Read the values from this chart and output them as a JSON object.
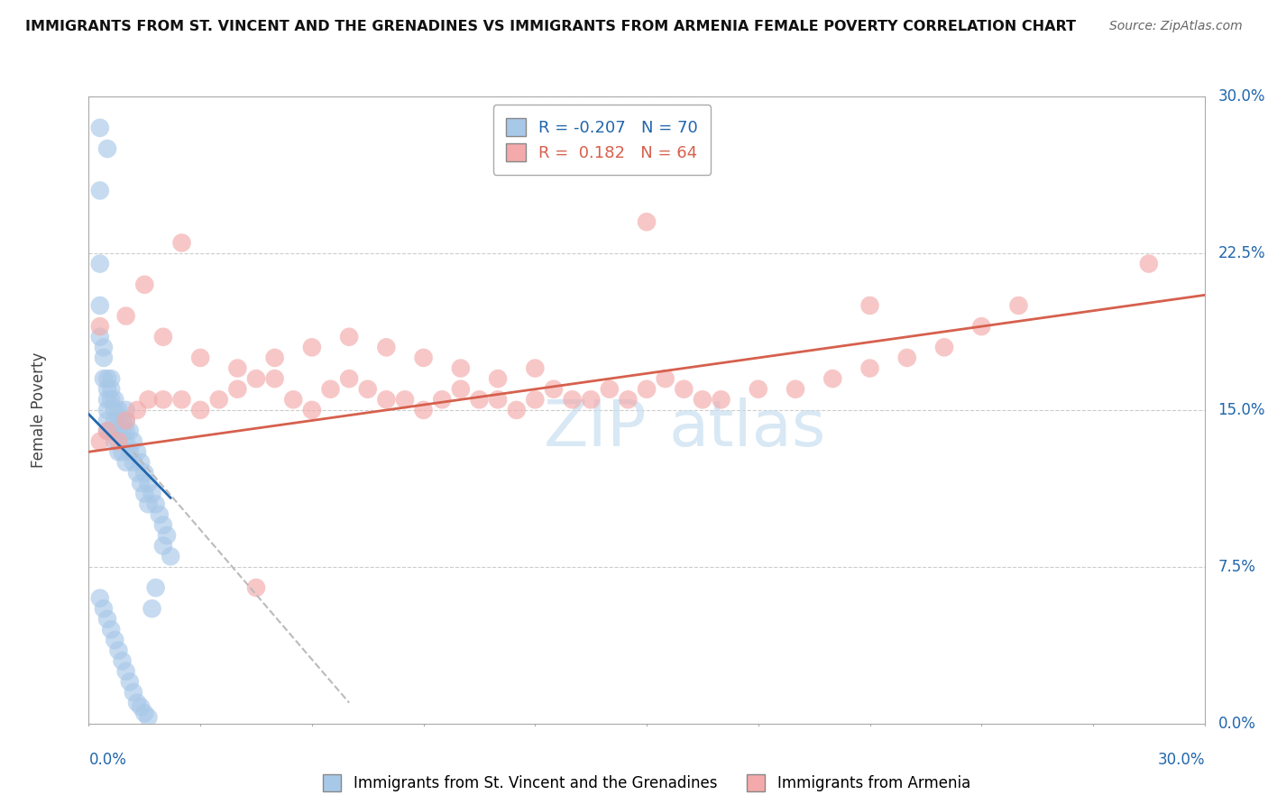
{
  "title": "IMMIGRANTS FROM ST. VINCENT AND THE GRENADINES VS IMMIGRANTS FROM ARMENIA FEMALE POVERTY CORRELATION CHART",
  "source": "Source: ZipAtlas.com",
  "ylabel": "Female Poverty",
  "xrange": [
    0.0,
    0.3
  ],
  "yrange": [
    0.0,
    0.3
  ],
  "blue_R": "-0.207",
  "blue_N": "70",
  "pink_R": "0.182",
  "pink_N": "64",
  "blue_color": "#a8c8e8",
  "pink_color": "#f4aaaa",
  "blue_line_color": "#2166ac",
  "pink_line_color": "#d6604d",
  "dashed_line_color": "#bbbbbb",
  "background_color": "#ffffff",
  "watermark": "ZIPatlas",
  "legend_label_blue": "Immigrants from St. Vincent and the Grenadines",
  "legend_label_pink": "Immigrants from Armenia",
  "blue_scatter_x": [
    0.003,
    0.003,
    0.003,
    0.003,
    0.003,
    0.004,
    0.004,
    0.004,
    0.005,
    0.005,
    0.005,
    0.005,
    0.005,
    0.005,
    0.005,
    0.006,
    0.006,
    0.006,
    0.006,
    0.007,
    0.007,
    0.007,
    0.007,
    0.008,
    0.008,
    0.008,
    0.008,
    0.009,
    0.009,
    0.009,
    0.01,
    0.01,
    0.01,
    0.01,
    0.01,
    0.011,
    0.011,
    0.012,
    0.012,
    0.013,
    0.013,
    0.014,
    0.014,
    0.015,
    0.015,
    0.016,
    0.016,
    0.017,
    0.018,
    0.019,
    0.02,
    0.02,
    0.021,
    0.022,
    0.003,
    0.004,
    0.005,
    0.006,
    0.007,
    0.008,
    0.009,
    0.01,
    0.011,
    0.012,
    0.013,
    0.014,
    0.015,
    0.016,
    0.017,
    0.018
  ],
  "blue_scatter_y": [
    0.285,
    0.255,
    0.22,
    0.2,
    0.185,
    0.18,
    0.175,
    0.165,
    0.275,
    0.165,
    0.16,
    0.155,
    0.15,
    0.145,
    0.14,
    0.165,
    0.16,
    0.155,
    0.14,
    0.155,
    0.15,
    0.145,
    0.135,
    0.15,
    0.145,
    0.14,
    0.13,
    0.145,
    0.14,
    0.13,
    0.15,
    0.145,
    0.14,
    0.135,
    0.125,
    0.14,
    0.13,
    0.135,
    0.125,
    0.13,
    0.12,
    0.125,
    0.115,
    0.12,
    0.11,
    0.115,
    0.105,
    0.11,
    0.105,
    0.1,
    0.095,
    0.085,
    0.09,
    0.08,
    0.06,
    0.055,
    0.05,
    0.045,
    0.04,
    0.035,
    0.03,
    0.025,
    0.02,
    0.015,
    0.01,
    0.008,
    0.005,
    0.003,
    0.055,
    0.065
  ],
  "pink_scatter_x": [
    0.003,
    0.005,
    0.008,
    0.01,
    0.013,
    0.016,
    0.02,
    0.025,
    0.03,
    0.035,
    0.04,
    0.045,
    0.05,
    0.055,
    0.06,
    0.065,
    0.07,
    0.075,
    0.08,
    0.085,
    0.09,
    0.095,
    0.1,
    0.105,
    0.11,
    0.115,
    0.12,
    0.125,
    0.13,
    0.135,
    0.14,
    0.145,
    0.15,
    0.155,
    0.16,
    0.165,
    0.17,
    0.18,
    0.19,
    0.2,
    0.21,
    0.22,
    0.23,
    0.24,
    0.25,
    0.003,
    0.01,
    0.02,
    0.03,
    0.04,
    0.05,
    0.06,
    0.07,
    0.08,
    0.09,
    0.1,
    0.11,
    0.12,
    0.21,
    0.285,
    0.015,
    0.025,
    0.045,
    0.15
  ],
  "pink_scatter_y": [
    0.135,
    0.14,
    0.135,
    0.145,
    0.15,
    0.155,
    0.155,
    0.155,
    0.15,
    0.155,
    0.16,
    0.165,
    0.165,
    0.155,
    0.15,
    0.16,
    0.165,
    0.16,
    0.155,
    0.155,
    0.15,
    0.155,
    0.16,
    0.155,
    0.155,
    0.15,
    0.155,
    0.16,
    0.155,
    0.155,
    0.16,
    0.155,
    0.16,
    0.165,
    0.16,
    0.155,
    0.155,
    0.16,
    0.16,
    0.165,
    0.17,
    0.175,
    0.18,
    0.19,
    0.2,
    0.19,
    0.195,
    0.185,
    0.175,
    0.17,
    0.175,
    0.18,
    0.185,
    0.18,
    0.175,
    0.17,
    0.165,
    0.17,
    0.2,
    0.22,
    0.21,
    0.23,
    0.065,
    0.24
  ],
  "blue_line_x0": 0.0,
  "blue_line_x1": 0.022,
  "blue_line_y0": 0.148,
  "blue_line_y1": 0.108,
  "dashed_line_x0": 0.012,
  "dashed_line_x1": 0.07,
  "dashed_line_y0": 0.13,
  "dashed_line_y1": 0.01,
  "pink_line_x0": 0.0,
  "pink_line_x1": 0.3,
  "pink_line_y0": 0.13,
  "pink_line_y1": 0.205
}
